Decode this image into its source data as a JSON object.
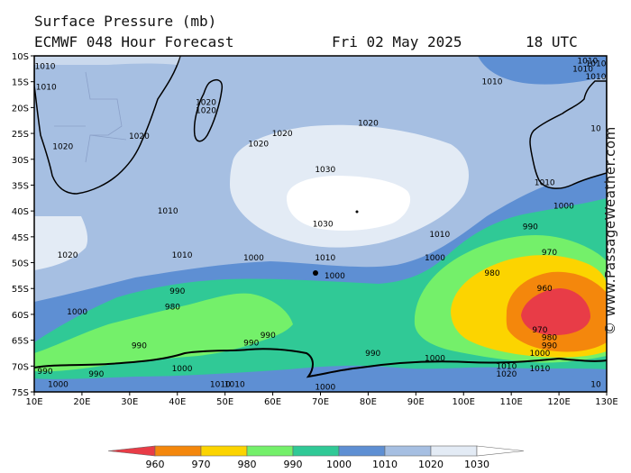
{
  "header": {
    "title": "Surface Pressure (mb)",
    "model": "ECMWF 048 Hour Forecast",
    "date": "Fri 02 May 2025",
    "time": "18 UTC"
  },
  "credit": "© www.PassageWeather.com",
  "map": {
    "lat_labels": [
      "10S",
      "15S",
      "20S",
      "25S",
      "30S",
      "35S",
      "40S",
      "45S",
      "50S",
      "55S",
      "60S",
      "65S",
      "70S",
      "75S"
    ],
    "lon_labels": [
      "10E",
      "20E",
      "30E",
      "40E",
      "50E",
      "60E",
      "70E",
      "80E",
      "90E",
      "100E",
      "110E",
      "120E",
      "130E"
    ],
    "isobar_labels": [
      {
        "text": "1010",
        "lon": 12,
        "lat": -12
      },
      {
        "text": "1010",
        "lon": 12.5,
        "lat": -16
      },
      {
        "text": "1010",
        "lon": 106,
        "lat": -15
      },
      {
        "text": "1010",
        "lon": 125,
        "lat": -12.5
      },
      {
        "text": "1010",
        "lon": 126,
        "lat": -11
      },
      {
        "text": "1010",
        "lon": 130,
        "lat": -14
      },
      {
        "text": "1020",
        "lon": 46,
        "lat": -19
      },
      {
        "text": "1020",
        "lon": 46,
        "lat": -20.5
      },
      {
        "text": "1020",
        "lon": 32,
        "lat": -25.5
      },
      {
        "text": "1020",
        "lon": 16,
        "lat": -27.5
      },
      {
        "text": "1020",
        "lon": 57,
        "lat": -27
      },
      {
        "text": "1020",
        "lon": 62,
        "lat": -25
      },
      {
        "text": "1020",
        "lon": 80,
        "lat": -23
      },
      {
        "text": "1030",
        "lon": 71,
        "lat": -32
      },
      {
        "text": "1030",
        "lon": 70.5,
        "lat": -42.5
      },
      {
        "text": "1010",
        "lon": 38,
        "lat": -40
      },
      {
        "text": "1010",
        "lon": 95,
        "lat": -44.5
      },
      {
        "text": "1010",
        "lon": 117,
        "lat": -34.5
      },
      {
        "text": "1000",
        "lon": 121,
        "lat": -39
      },
      {
        "text": "990",
        "lon": 114,
        "lat": -43
      },
      {
        "text": "1020",
        "lon": 17,
        "lat": -48.5
      },
      {
        "text": "1010",
        "lon": 41,
        "lat": -48.5
      },
      {
        "text": "1000",
        "lon": 56,
        "lat": -49
      },
      {
        "text": "1010",
        "lon": 71,
        "lat": -49
      },
      {
        "text": "1000",
        "lon": 73,
        "lat": -52.5
      },
      {
        "text": "1000",
        "lon": 94,
        "lat": -49
      },
      {
        "text": "970",
        "lon": 118,
        "lat": -48
      },
      {
        "text": "980",
        "lon": 106,
        "lat": -52
      },
      {
        "text": "960",
        "lon": 117,
        "lat": -55
      },
      {
        "text": "990",
        "lon": 40,
        "lat": -55.5
      },
      {
        "text": "980",
        "lon": 39,
        "lat": -58.5
      },
      {
        "text": "1000",
        "lon": 19,
        "lat": -59.5
      },
      {
        "text": "970",
        "lon": 116,
        "lat": -63
      },
      {
        "text": "980",
        "lon": 118,
        "lat": -64.5
      },
      {
        "text": "990",
        "lon": 118,
        "lat": -66
      },
      {
        "text": "1000",
        "lon": 116,
        "lat": -67.5
      },
      {
        "text": "990",
        "lon": 32,
        "lat": -66
      },
      {
        "text": "990",
        "lon": 59,
        "lat": -64
      },
      {
        "text": "990",
        "lon": 55.5,
        "lat": -65.5
      },
      {
        "text": "990",
        "lon": 81,
        "lat": -67.5
      },
      {
        "text": "1000",
        "lon": 94,
        "lat": -68.5
      },
      {
        "text": "1000",
        "lon": 41,
        "lat": -70.5
      },
      {
        "text": "990",
        "lon": 12,
        "lat": -71
      },
      {
        "text": "990",
        "lon": 23,
        "lat": -71.5
      },
      {
        "text": "1000",
        "lon": 15,
        "lat": -73.5
      },
      {
        "text": "1010",
        "lon": 109,
        "lat": -70
      },
      {
        "text": "1020",
        "lon": 109,
        "lat": -71.5
      },
      {
        "text": "1010",
        "lon": 116,
        "lat": -70.5
      },
      {
        "text": "1010",
        "lon": 49,
        "lat": -73.5
      },
      {
        "text": "1010",
        "lon": 52,
        "lat": -73.5
      },
      {
        "text": "1000",
        "lon": 71,
        "lat": -74
      },
      {
        "text": "10",
        "lon": 129.5,
        "lat": -73.5
      },
      {
        "text": "10",
        "lon": 130,
        "lat": -24
      },
      {
        "text": "1010",
        "lon": 130,
        "lat": -11.5
      }
    ]
  },
  "legend": {
    "levels": [
      "960",
      "970",
      "980",
      "990",
      "1000",
      "1010",
      "1020",
      "1030"
    ],
    "colors": [
      "#e83c47",
      "#f4870c",
      "#fcd400",
      "#74f06a",
      "#30c996",
      "#5e8fd3",
      "#a6bfe2",
      "#e3ebf5",
      "#ffffff"
    ]
  }
}
